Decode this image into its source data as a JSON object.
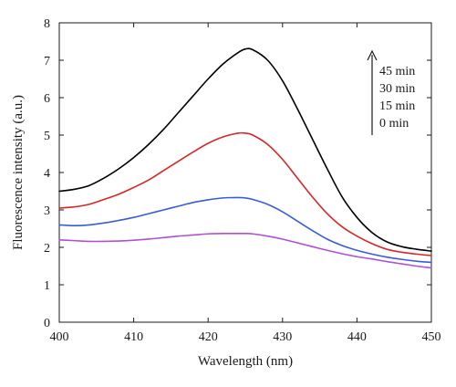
{
  "chart_data": {
    "type": "line",
    "xlabel": "Wavelength (nm)",
    "ylabel": "Fluorescence intensity (a.u.)",
    "xlim": [
      400,
      450
    ],
    "ylim": [
      0,
      8
    ],
    "xticks": [
      400,
      410,
      420,
      430,
      440,
      450
    ],
    "yticks": [
      0,
      1,
      2,
      3,
      4,
      5,
      6,
      7,
      8
    ],
    "grid": false,
    "legend_position": "top-right",
    "legend_arrow": "up",
    "legend": [
      "45 min",
      "30 min",
      "15 min",
      "0 min"
    ],
    "x": [
      400,
      402,
      404,
      406,
      408,
      410,
      412,
      414,
      416,
      418,
      420,
      422,
      424,
      425,
      426,
      428,
      430,
      432,
      434,
      436,
      438,
      440,
      442,
      444,
      446,
      448,
      450
    ],
    "series": [
      {
        "name": "45 min",
        "color": "#000000",
        "values": [
          3.5,
          3.55,
          3.65,
          3.85,
          4.1,
          4.4,
          4.75,
          5.15,
          5.6,
          6.05,
          6.5,
          6.9,
          7.2,
          7.3,
          7.28,
          7.0,
          6.45,
          5.7,
          4.9,
          4.1,
          3.35,
          2.8,
          2.4,
          2.15,
          2.02,
          1.95,
          1.9
        ]
      },
      {
        "name": "30 min",
        "color": "#d62728",
        "values": [
          3.05,
          3.08,
          3.15,
          3.28,
          3.42,
          3.6,
          3.8,
          4.05,
          4.3,
          4.55,
          4.78,
          4.95,
          5.05,
          5.05,
          5.0,
          4.75,
          4.35,
          3.85,
          3.35,
          2.9,
          2.55,
          2.3,
          2.1,
          1.95,
          1.87,
          1.82,
          1.78
        ]
      },
      {
        "name": "15 min",
        "color": "#3a5bd9",
        "values": [
          2.6,
          2.58,
          2.6,
          2.65,
          2.72,
          2.8,
          2.9,
          3.0,
          3.1,
          3.2,
          3.27,
          3.32,
          3.33,
          3.32,
          3.28,
          3.15,
          2.95,
          2.7,
          2.45,
          2.22,
          2.05,
          1.92,
          1.82,
          1.74,
          1.68,
          1.63,
          1.6
        ]
      },
      {
        "name": "0 min",
        "color": "#b04fd6",
        "values": [
          2.2,
          2.18,
          2.16,
          2.16,
          2.17,
          2.19,
          2.22,
          2.26,
          2.3,
          2.33,
          2.36,
          2.37,
          2.37,
          2.37,
          2.36,
          2.3,
          2.22,
          2.12,
          2.02,
          1.92,
          1.83,
          1.75,
          1.69,
          1.62,
          1.56,
          1.5,
          1.45
        ]
      }
    ]
  }
}
